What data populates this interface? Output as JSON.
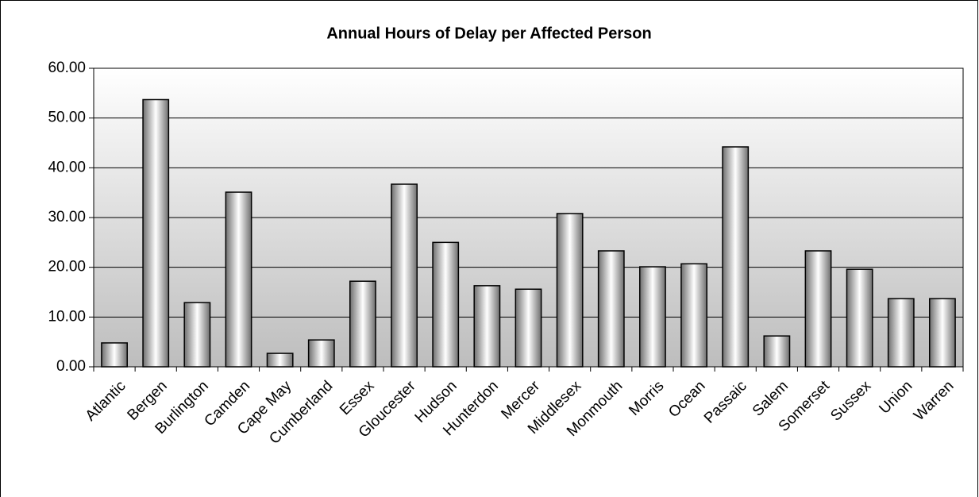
{
  "chart_data": {
    "type": "bar",
    "title": "Annual Hours of Delay per Affected Person",
    "categories": [
      "Atlantic",
      "Bergen",
      "Burlington",
      "Camden",
      "Cape May",
      "Cumberland",
      "Essex",
      "Gloucester",
      "Hudson",
      "Hunterdon",
      "Mercer",
      "Middlesex",
      "Monmouth",
      "Morris",
      "Ocean",
      "Passaic",
      "Salem",
      "Somerset",
      "Sussex",
      "Union",
      "Warren"
    ],
    "values": [
      4.8,
      53.7,
      12.9,
      35.1,
      2.7,
      5.4,
      17.2,
      36.7,
      25.0,
      16.3,
      15.6,
      30.8,
      23.3,
      20.1,
      20.7,
      44.2,
      6.2,
      23.3,
      19.6,
      13.7,
      13.7
    ],
    "color": "#a0a0a0",
    "ylim": [
      0,
      60
    ],
    "yticks": [
      {
        "value": 0,
        "label": "0.00"
      },
      {
        "value": 10,
        "label": "10.00"
      },
      {
        "value": 20,
        "label": "20.00"
      },
      {
        "value": 30,
        "label": "30.00"
      },
      {
        "value": 40,
        "label": "40.00"
      },
      {
        "value": 50,
        "label": "50.00"
      },
      {
        "value": 60,
        "label": "60.00"
      }
    ],
    "grid": true
  }
}
